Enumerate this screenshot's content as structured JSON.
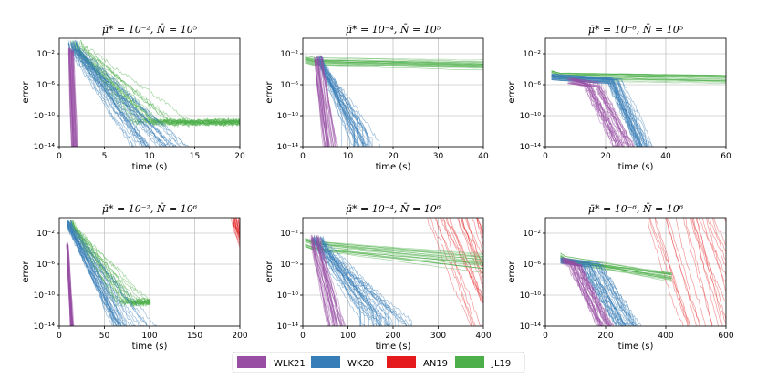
{
  "chart_data": {
    "type": "line",
    "ylabel": "error",
    "xlabel": "time (s)",
    "yscale": "log",
    "ylim_exp": [
      -14,
      0
    ],
    "yticks": [
      "10⁻²",
      "10⁻⁶",
      "10⁻¹⁰",
      "10⁻¹⁴"
    ],
    "ytick_exp": [
      -2,
      -6,
      -10,
      -14
    ],
    "legend": [
      {
        "name": "WLK21",
        "color": "#984ea3"
      },
      {
        "name": "WK20",
        "color": "#377eb8"
      },
      {
        "name": "AN19",
        "color": "#e41a1c"
      },
      {
        "name": "JL19",
        "color": "#4daf4a"
      }
    ],
    "panels": [
      {
        "title": "μ̄* = 10⁻², N̄ = 10⁵",
        "xlim": [
          0,
          20
        ],
        "xticks": [
          0,
          5,
          10,
          15,
          20
        ],
        "series": {
          "WLK21": {
            "start": [
              1.0,
              1.6
            ],
            "y0": -2,
            "slope": -30,
            "end": -14
          },
          "WK20": {
            "start": [
              1.0,
              2.0
            ],
            "y0": -1,
            "slope": -1.45,
            "end": -14
          },
          "JL19": {
            "start": [
              1.2,
              2.6
            ],
            "y0": -1,
            "slope": -1.2,
            "plateau": -10.8,
            "tmax": 20
          }
        }
      },
      {
        "title": "μ̄* = 10⁻⁴, N̄ = 10⁵",
        "xlim": [
          0,
          40
        ],
        "xticks": [
          0,
          10,
          20,
          30,
          40
        ],
        "series": {
          "WLK21": {
            "start": [
              2.5,
              4.5
            ],
            "y0": -3,
            "slope": -4.5,
            "end": -14
          },
          "WK20": {
            "start": [
              3.0,
              4.5
            ],
            "y0": -3,
            "slope": -1.15,
            "floor": [
              -14,
              -10.5
            ],
            "tmax": 40
          },
          "JL19": {
            "start": [
              0.5,
              0.5
            ],
            "y0": -3,
            "slope": -0.008,
            "flat": true,
            "tmax": 40
          }
        }
      },
      {
        "title": "μ̄* = 10⁻⁶, N̄ = 10⁵",
        "xlim": [
          0,
          60
        ],
        "xticks": [
          0,
          20,
          40,
          60
        ],
        "series": {
          "WLK21": {
            "plateau_start": [
              7,
              10
            ],
            "y0": -6,
            "drop": [
              13,
              19
            ],
            "end": -14
          },
          "WK20": {
            "plateau_start": [
              2,
              2
            ],
            "y0": -5.5,
            "drop": [
              21,
              26
            ],
            "end": -14,
            "tmax": 60
          },
          "JL19": {
            "start": [
              2,
              2
            ],
            "y0": -5,
            "flat": true,
            "tmax": 60
          }
        }
      },
      {
        "title": "μ̄* = 10⁻², N̄ = 10⁶",
        "xlim": [
          0,
          200
        ],
        "xticks": [
          0,
          50,
          100,
          150,
          200
        ],
        "series": {
          "WLK21": {
            "start": [
              8,
              10
            ],
            "y0": -4,
            "slope": -2.0,
            "end": -14
          },
          "WK20": {
            "start": [
              8,
              14
            ],
            "y0": -1,
            "slope": -0.2,
            "end": -14
          },
          "JL19": {
            "start": [
              10,
              18
            ],
            "y0": -1,
            "slope": -0.17,
            "plateau": -10.8,
            "tmax": 100
          },
          "AN19": {
            "start": [
              190,
              200
            ],
            "y0": -0.5,
            "slope": -0.3
          }
        }
      },
      {
        "title": "μ̄* = 10⁻⁴, N̄ = 10⁶",
        "xlim": [
          0,
          400
        ],
        "xticks": [
          0,
          100,
          200,
          300,
          400
        ],
        "series": {
          "WLK21": {
            "start": [
              15,
              40
            ],
            "y0": -3,
            "slope": -0.25,
            "end": -14
          },
          "WK20": {
            "start": [
              20,
              45
            ],
            "y0": -3,
            "slope": -0.075,
            "floor": [
              -14,
              -11
            ],
            "tmax": 400
          },
          "JL19": {
            "start": [
              5,
              5
            ],
            "y0": -3.5,
            "flat": true,
            "tmax": 400
          },
          "AN19": {
            "start": [
              270,
              400
            ],
            "y0": 0,
            "slope": -0.15
          }
        }
      },
      {
        "title": "μ̄* = 10⁻⁶, N̄ = 10⁶",
        "xlim": [
          0,
          600
        ],
        "xticks": [
          0,
          200,
          400,
          600
        ],
        "series": {
          "WLK21": {
            "plateau_start": [
              50,
              70
            ],
            "y0": -6,
            "drop": [
              80,
              130
            ],
            "end": -14
          },
          "WK20": {
            "plateau_start": [
              50,
              50
            ],
            "y0": -6,
            "drop": [
              120,
              200
            ],
            "end": -14,
            "tmax": 380
          },
          "JL19": {
            "start": [
              50,
              50
            ],
            "y0": -5.3,
            "flat": true,
            "tmax": 420
          },
          "AN19": {
            "start": [
              320,
              600
            ],
            "y0": 0,
            "slope": -0.12
          }
        }
      }
    ]
  }
}
